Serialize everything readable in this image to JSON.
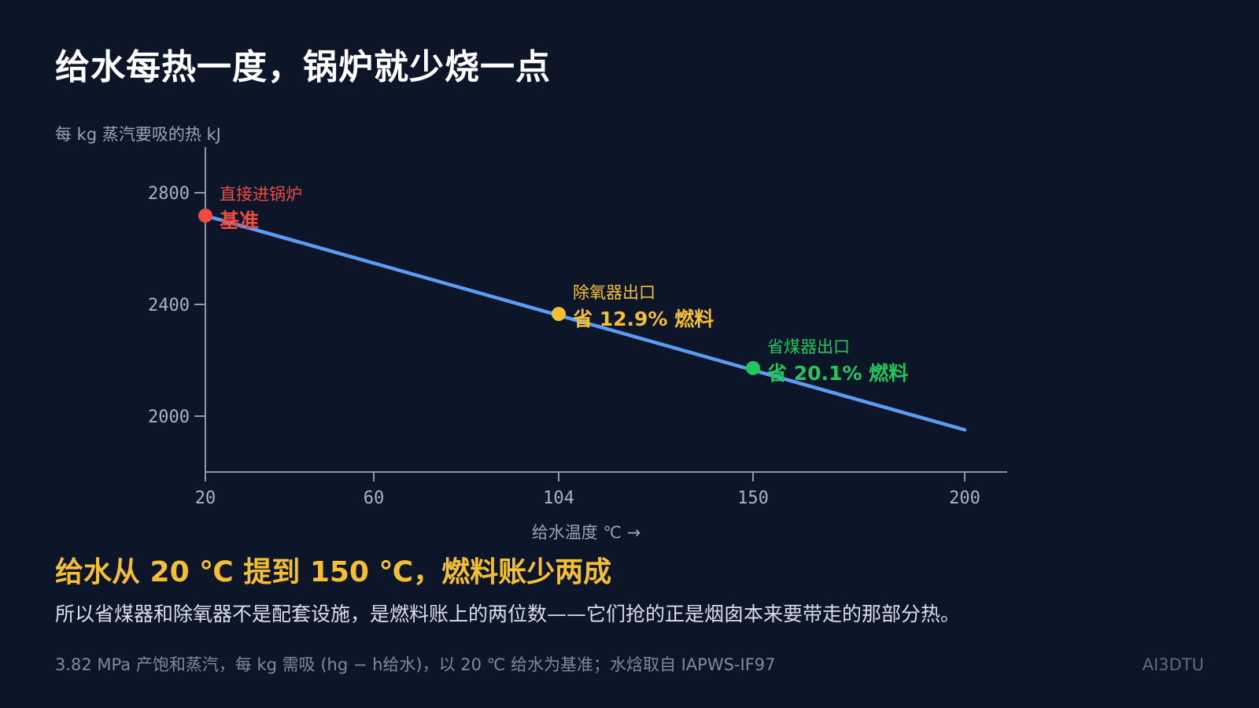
{
  "title": "给水每热一度，锅炉就少烧一点",
  "headline": "给水从 20 ℃ 提到 150 ℃，燃料账少两成",
  "body": "所以省煤器和除氧器不是配套设施，是燃料账上的两位数——它们抢的正是烟囱本来要带走的那部分热。",
  "footnote": "3.82 MPa 产饱和蒸汽，每 kg 需吸 (hg − h给水)，以 20 ℃ 给水为基准；水焓取自 IAPWS-IF97",
  "watermark": "AI3DTU",
  "colors": {
    "background": "#0c1628",
    "line": "#5b9cf5",
    "axis": "#8d98a8",
    "baseline": "#ef4b43",
    "deaerator": "#f6bf33",
    "economizer": "#22c55e"
  },
  "chart_data": {
    "type": "line",
    "ylabel": "每 kg 蒸汽要吸的热 kJ",
    "xlabel": "给水温度 ℃ →",
    "x_ticks": [
      20,
      60,
      104,
      150,
      200
    ],
    "y_ticks": [
      2000,
      2400,
      2800
    ],
    "xlim": [
      20,
      210
    ],
    "ylim": [
      1800,
      2950
    ],
    "grid": false,
    "series": [
      {
        "x": [
          20,
          200
        ],
        "y": [
          2718,
          1951
        ],
        "color": "#5b9cf5"
      }
    ],
    "annotations": [
      {
        "x": 20,
        "y": 2718,
        "label": "直接进锅炉",
        "value": "基准",
        "color": "#ef4b43"
      },
      {
        "x": 104,
        "y": 2366,
        "label": "除氧器出口",
        "value": "省 12.9% 燃料",
        "color": "#f6bf33"
      },
      {
        "x": 150,
        "y": 2172,
        "label": "省煤器出口",
        "value": "省 20.1% 燃料",
        "color": "#22c55e"
      }
    ]
  }
}
